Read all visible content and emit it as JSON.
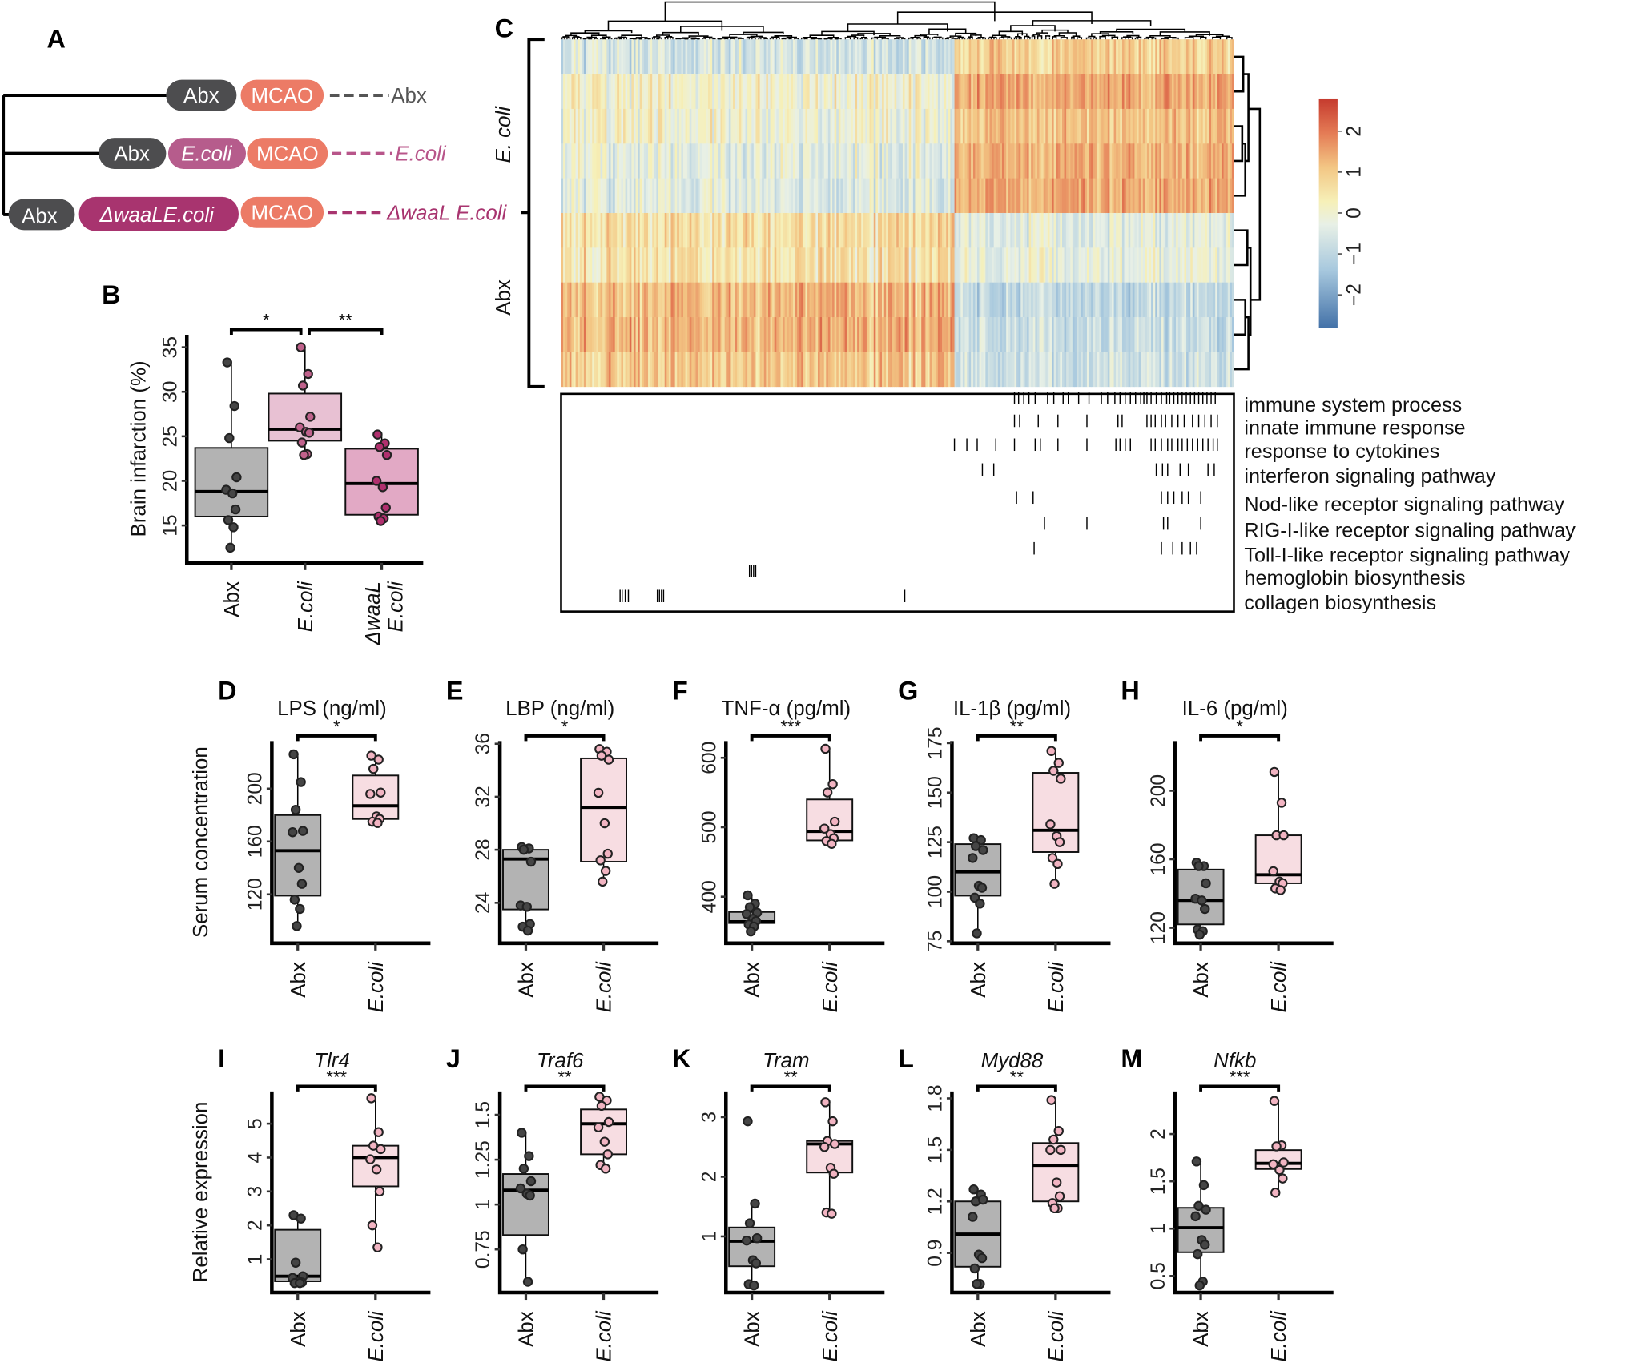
{
  "panel_letters": {
    "A": "A",
    "B": "B",
    "C": "C",
    "D": "D",
    "E": "E",
    "F": "F",
    "G": "G",
    "H": "H",
    "I": "I",
    "J": "J",
    "K": "K",
    "L": "L",
    "M": "M"
  },
  "colors": {
    "abx_box": "#b3b3b3",
    "abx_point": "#454545",
    "ecoli_box_B": "#e8c1d3",
    "ecoli_point_B": "#c0628c",
    "waal_box": "#e2a9c5",
    "waal_point": "#b0306e",
    "ecoli_box": "#f7dde2",
    "ecoli_point": "#f2b4c2",
    "pill_abx": "#4d4d4f",
    "pill_mcao": "#ec7b66",
    "pill_ecoli": "#b65c8c",
    "pill_waal": "#a8346f",
    "text_ecoli": "#b8558a",
    "text_waal": "#a8346f"
  },
  "diagram": {
    "rows": [
      {
        "steps": [
          "Abx",
          "MCAO"
        ],
        "group": "Abx"
      },
      {
        "steps": [
          "Abx",
          "E.coli",
          "MCAO"
        ],
        "group": "E.coli"
      },
      {
        "steps": [
          "Abx",
          "ΔwaaLE.coli",
          "MCAO"
        ],
        "group": "ΔwaaL E.coli"
      }
    ]
  },
  "chart_data": [
    {
      "type": "box",
      "panel": "B",
      "title": "",
      "ylabel": "Brain infarction (%)",
      "ylim": [
        10.8,
        36.4
      ],
      "yticks": [
        15,
        20,
        25,
        30,
        35
      ],
      "yticklabels": [
        "15",
        "20",
        "25",
        "30",
        "35"
      ],
      "groups": [
        {
          "name": "Abx",
          "q1": 16,
          "median": 18.8,
          "q3": 23.7,
          "whisker_low": 12.5,
          "whisker_high": 33.3,
          "points": [
            33.3,
            28.4,
            24.8,
            20.4,
            19,
            18.6,
            16.8,
            15.6,
            14.8,
            12.5
          ]
        },
        {
          "name": "E.coli",
          "q1": 24.5,
          "median": 25.8,
          "q3": 29.8,
          "whisker_low": 23,
          "whisker_high": 35,
          "points": [
            35,
            32,
            30.7,
            27.2,
            26,
            25.5,
            25.4,
            24.3,
            23,
            22.9
          ]
        },
        {
          "name": "ΔwaaL E.coli",
          "q1": 16.2,
          "median": 19.7,
          "q3": 23.6,
          "whisker_low": 15.5,
          "whisker_high": 25.2,
          "points": [
            25.2,
            24.2,
            23.8,
            22.9,
            20,
            19.3,
            17,
            16,
            15.8,
            15.5
          ]
        }
      ],
      "significance": [
        {
          "from": 0,
          "to": 1,
          "label": "*"
        },
        {
          "from": 1,
          "to": 2,
          "label": "**"
        }
      ]
    },
    {
      "type": "heatmap",
      "panel": "C",
      "row_groups": [
        "E. coli",
        "Abx"
      ],
      "rows_per_group": 5,
      "n_genes": 650,
      "gene_cluster_boundary": 379,
      "row_cluster_means": [
        [
          -0.6,
          0.9
        ],
        [
          0.1,
          1.4
        ],
        [
          0,
          1.1
        ],
        [
          -0.3,
          1.3
        ],
        [
          -0.4,
          1.4
        ],
        [
          0.6,
          -0.3
        ],
        [
          0.5,
          -0.2
        ],
        [
          1.2,
          -0.9
        ],
        [
          1.3,
          -0.8
        ],
        [
          1.0,
          -0.7
        ]
      ],
      "colorbar": {
        "min": -2.8,
        "max": 2.8,
        "ticks": [
          2,
          1,
          0,
          -1,
          -2
        ],
        "ticklabels": [
          "2",
          "1",
          "0",
          "−1",
          "−2"
        ]
      },
      "annotations": [
        {
          "term": "immune system process",
          "genes": [
            438,
            442,
            447,
            452,
            458,
            470,
            476,
            485,
            490,
            500,
            510,
            522,
            528,
            535,
            540,
            545,
            550,
            555,
            560,
            563,
            566,
            570,
            575,
            580,
            585,
            588,
            592,
            596,
            600,
            604,
            608,
            612,
            616,
            620,
            624,
            628,
            632
          ]
        },
        {
          "term": "innate immune response",
          "genes": [
            438,
            443,
            461,
            480,
            508,
            538,
            542,
            566,
            570,
            574,
            580,
            584,
            590,
            596,
            602,
            610,
            616,
            622,
            628,
            634
          ]
        },
        {
          "term": "response to cytokines",
          "genes": [
            380,
            392,
            402,
            420,
            438,
            458,
            463,
            480,
            508,
            536,
            540,
            545,
            550,
            570,
            574,
            580,
            586,
            590,
            596,
            600,
            605,
            610,
            615,
            620,
            625,
            630,
            634
          ]
        },
        {
          "term": "interferon signaling pathway",
          "genes": [
            407,
            418,
            575,
            581,
            586,
            598,
            606,
            625,
            631
          ]
        },
        {
          "term": "Nod-like receptor signaling pathway",
          "genes": [
            440,
            456,
            580,
            586,
            592,
            600,
            606,
            618
          ]
        },
        {
          "term": "RIG-I-like receptor signaling pathway",
          "genes": [
            467,
            508,
            582,
            586,
            618
          ]
        },
        {
          "term": "Toll-I-like receptor signaling pathway",
          "genes": [
            457,
            580,
            591,
            600,
            608,
            614
          ]
        },
        {
          "term": "hemoglobin biosynthesis",
          "genes": [
            182,
            184,
            186,
            188
          ]
        },
        {
          "term": "collagen biosynthesis",
          "genes": [
            57,
            59,
            62,
            65,
            93,
            95,
            97,
            99,
            332
          ]
        }
      ]
    },
    {
      "type": "box",
      "panel": "D",
      "title": "LPS (ng/ml)",
      "title_italic": false,
      "ylabel": "Serum concentration",
      "ylim": [
        83,
        236
      ],
      "yticks": [
        120,
        160,
        200
      ],
      "yticklabels": [
        "120",
        "160",
        "200"
      ],
      "groups": [
        {
          "name": "Abx",
          "q1": 119,
          "median": 153,
          "q3": 180,
          "whisker_low": 96,
          "whisker_high": 226,
          "points": [
            226,
            205,
            184,
            168,
            167,
            140,
            128,
            116,
            109,
            96
          ]
        },
        {
          "name": "E.coli",
          "q1": 177,
          "median": 187,
          "q3": 210,
          "whisker_low": 173,
          "whisker_high": 225,
          "points": [
            225,
            222,
            215,
            197,
            196,
            179,
            177,
            175,
            174
          ]
        }
      ],
      "significance": [
        {
          "from": 0,
          "to": 1,
          "label": "*"
        }
      ]
    },
    {
      "type": "box",
      "panel": "E",
      "title": "LBP (ng/ml)",
      "title_italic": false,
      "ylabel": "",
      "ylim": [
        20.95,
        36.2
      ],
      "yticks": [
        24,
        28,
        32,
        36
      ],
      "yticklabels": [
        "24",
        "28",
        "32",
        "36"
      ],
      "groups": [
        {
          "name": "Abx",
          "q1": 23.5,
          "median": 27.3,
          "q3": 28,
          "whisker_low": 21.9,
          "whisker_high": 28.2,
          "points": [
            28.2,
            28.1,
            28,
            27.1,
            23.8,
            23.7,
            22.4,
            22.2,
            21.9
          ]
        },
        {
          "name": "E.coli",
          "q1": 27.1,
          "median": 31.2,
          "q3": 34.9,
          "whisker_low": 25.6,
          "whisker_high": 35.6,
          "points": [
            35.6,
            35.4,
            35.1,
            34.8,
            32.3,
            30,
            27.7,
            27.2,
            26.4,
            25.6
          ]
        }
      ],
      "significance": [
        {
          "from": 0,
          "to": 1,
          "label": "*"
        }
      ]
    },
    {
      "type": "box",
      "panel": "F",
      "title": "TNF-α (pg/ml)",
      "title_italic": false,
      "ylabel": "",
      "ylim": [
        333,
        624
      ],
      "yticks": [
        400,
        500,
        600
      ],
      "yticklabels": [
        "400",
        "500",
        "600"
      ],
      "groups": [
        {
          "name": "Abx",
          "q1": 362,
          "median": 364,
          "q3": 378,
          "whisker_low": 350,
          "whisker_high": 402,
          "points": [
            402,
            390,
            385,
            377,
            375,
            368,
            365,
            360,
            357,
            350
          ]
        },
        {
          "name": "E.coli",
          "q1": 481,
          "median": 494,
          "q3": 540,
          "whisker_low": 476,
          "whisker_high": 613,
          "points": [
            613,
            562,
            550,
            508,
            498,
            490,
            484,
            480,
            476
          ]
        }
      ],
      "significance": [
        {
          "from": 0,
          "to": 1,
          "label": "***"
        }
      ]
    },
    {
      "type": "box",
      "panel": "G",
      "title": "IL-1β (pg/ml)",
      "title_italic": false,
      "ylabel": "",
      "ylim": [
        74,
        176
      ],
      "yticks": [
        75,
        100,
        125,
        150,
        175
      ],
      "yticklabels": [
        "75",
        "100",
        "125",
        "150",
        "175"
      ],
      "groups": [
        {
          "name": "Abx",
          "q1": 98,
          "median": 110,
          "q3": 124,
          "whisker_low": 79,
          "whisker_high": 127,
          "points": [
            127,
            126,
            123,
            121,
            117,
            103,
            102,
            97,
            94,
            79
          ]
        },
        {
          "name": "E.coli",
          "q1": 120,
          "median": 131,
          "q3": 160,
          "whisker_low": 104,
          "whisker_high": 171,
          "points": [
            171,
            165,
            161,
            157,
            134,
            128,
            125,
            117,
            114,
            104
          ]
        }
      ],
      "significance": [
        {
          "from": 0,
          "to": 1,
          "label": "**"
        }
      ]
    },
    {
      "type": "box",
      "panel": "H",
      "title": "IL-6 (pg/ml)",
      "title_italic": false,
      "ylabel": "",
      "ylim": [
        111,
        229
      ],
      "yticks": [
        120,
        160,
        200
      ],
      "yticklabels": [
        "120",
        "160",
        "200"
      ],
      "groups": [
        {
          "name": "Abx",
          "q1": 122,
          "median": 136,
          "q3": 154,
          "whisker_low": 116,
          "whisker_high": 158,
          "points": [
            158,
            156,
            156,
            146,
            137,
            136,
            131,
            119,
            118,
            116
          ]
        },
        {
          "name": "E.coli",
          "q1": 146,
          "median": 151,
          "q3": 174,
          "whisker_low": 142,
          "whisker_high": 211,
          "points": [
            211,
            193,
            174,
            174,
            153,
            147,
            146,
            143,
            142
          ]
        }
      ],
      "significance": [
        {
          "from": 0,
          "to": 1,
          "label": "*"
        }
      ]
    },
    {
      "type": "box",
      "panel": "I",
      "title": "Tlr4",
      "title_italic": true,
      "ylabel": "Relative expression",
      "ylim": [
        0.02,
        5.95
      ],
      "yticks": [
        1,
        2,
        3,
        4,
        5
      ],
      "yticklabels": [
        "1",
        "2",
        "3",
        "4",
        "5"
      ],
      "groups": [
        {
          "name": "Abx",
          "q1": 0.35,
          "median": 0.5,
          "q3": 1.87,
          "whisker_low": 0.3,
          "whisker_high": 2.25,
          "points": [
            2.3,
            2.2,
            0.9,
            0.5,
            0.45,
            0.35,
            0.32,
            0.3,
            0.3
          ]
        },
        {
          "name": "E.coli",
          "q1": 3.15,
          "median": 4.0,
          "q3": 4.35,
          "whisker_low": 1.35,
          "whisker_high": 5.75,
          "points": [
            5.75,
            4.75,
            4.35,
            4.25,
            3.95,
            3.65,
            3.0,
            2.0,
            1.35
          ]
        }
      ],
      "significance": [
        {
          "from": 0,
          "to": 1,
          "label": "***"
        }
      ]
    },
    {
      "type": "box",
      "panel": "J",
      "title": "Traf6",
      "title_italic": true,
      "ylabel": "",
      "ylim": [
        0.51,
        1.63
      ],
      "yticks": [
        0.75,
        1,
        1.25,
        1.5
      ],
      "yticklabels": [
        "0.75",
        "1",
        "1.25",
        "1.5"
      ],
      "groups": [
        {
          "name": "Abx",
          "q1": 0.83,
          "median": 1.08,
          "q3": 1.17,
          "whisker_low": 0.57,
          "whisker_high": 1.4,
          "points": [
            1.4,
            1.27,
            1.2,
            1.13,
            1.09,
            1.06,
            1.05,
            0.75,
            0.57
          ]
        },
        {
          "name": "E.coli",
          "q1": 1.28,
          "median": 1.45,
          "q3": 1.53,
          "whisker_low": 1.2,
          "whisker_high": 1.6,
          "points": [
            1.6,
            1.58,
            1.55,
            1.46,
            1.43,
            1.35,
            1.28,
            1.22,
            1.2
          ]
        }
      ],
      "significance": [
        {
          "from": 0,
          "to": 1,
          "label": "**"
        }
      ]
    },
    {
      "type": "box",
      "panel": "K",
      "title": "Tram",
      "title_italic": true,
      "ylabel": "",
      "ylim": [
        0.06,
        3.43
      ],
      "yticks": [
        1,
        2,
        3
      ],
      "yticklabels": [
        "1",
        "2",
        "3"
      ],
      "groups": [
        {
          "name": "Abx",
          "q1": 0.5,
          "median": 0.92,
          "q3": 1.15,
          "whisker_low": 0.18,
          "whisker_high": 1.55,
          "points": [
            2.93,
            1.55,
            1.22,
            0.97,
            0.93,
            0.6,
            0.55,
            0.2,
            0.18
          ]
        },
        {
          "name": "E.coli",
          "q1": 2.07,
          "median": 2.55,
          "q3": 2.6,
          "whisker_low": 1.38,
          "whisker_high": 3.25,
          "points": [
            3.25,
            2.93,
            2.6,
            2.55,
            2.5,
            2.15,
            2.05,
            1.4,
            1.38
          ]
        }
      ],
      "significance": [
        {
          "from": 0,
          "to": 1,
          "label": "**"
        }
      ]
    },
    {
      "type": "box",
      "panel": "L",
      "title": "Myd88",
      "title_italic": true,
      "ylabel": "",
      "ylim": [
        0.67,
        1.84
      ],
      "yticks": [
        0.9,
        1.2,
        1.5,
        1.8
      ],
      "yticklabels": [
        "0.9",
        "1.2",
        "1.5",
        "1.8"
      ],
      "groups": [
        {
          "name": "Abx",
          "q1": 0.82,
          "median": 1.01,
          "q3": 1.2,
          "whisker_low": 0.72,
          "whisker_high": 1.27,
          "points": [
            1.27,
            1.24,
            1.2,
            1.21,
            1.11,
            0.89,
            0.87,
            0.81,
            0.72,
            0.72
          ]
        },
        {
          "name": "E.coli",
          "q1": 1.2,
          "median": 1.41,
          "q3": 1.54,
          "whisker_low": 1.16,
          "whisker_high": 1.79,
          "points": [
            1.79,
            1.61,
            1.56,
            1.5,
            1.5,
            1.31,
            1.23,
            1.19,
            1.16,
            1.16
          ]
        }
      ],
      "significance": [
        {
          "from": 0,
          "to": 1,
          "label": "**"
        }
      ]
    },
    {
      "type": "box",
      "panel": "M",
      "title": "Nfkb",
      "title_italic": true,
      "ylabel": "",
      "ylim": [
        0.325,
        2.45
      ],
      "yticks": [
        0.5,
        1,
        1.5,
        2
      ],
      "yticklabels": [
        "0.5",
        "1",
        "1.5",
        "2"
      ],
      "groups": [
        {
          "name": "Abx",
          "q1": 0.75,
          "median": 1.01,
          "q3": 1.22,
          "whisker_low": 0.4,
          "whisker_high": 1.71,
          "points": [
            1.71,
            1.46,
            1.24,
            1.2,
            1.13,
            0.88,
            0.83,
            0.73,
            0.44,
            0.4
          ]
        },
        {
          "name": "E.coli",
          "q1": 1.63,
          "median": 1.69,
          "q3": 1.83,
          "whisker_low": 1.38,
          "whisker_high": 2.35,
          "points": [
            2.35,
            1.88,
            1.87,
            1.7,
            1.68,
            1.62,
            1.53,
            1.38
          ]
        }
      ],
      "significance": [
        {
          "from": 0,
          "to": 1,
          "label": "***"
        }
      ]
    }
  ]
}
